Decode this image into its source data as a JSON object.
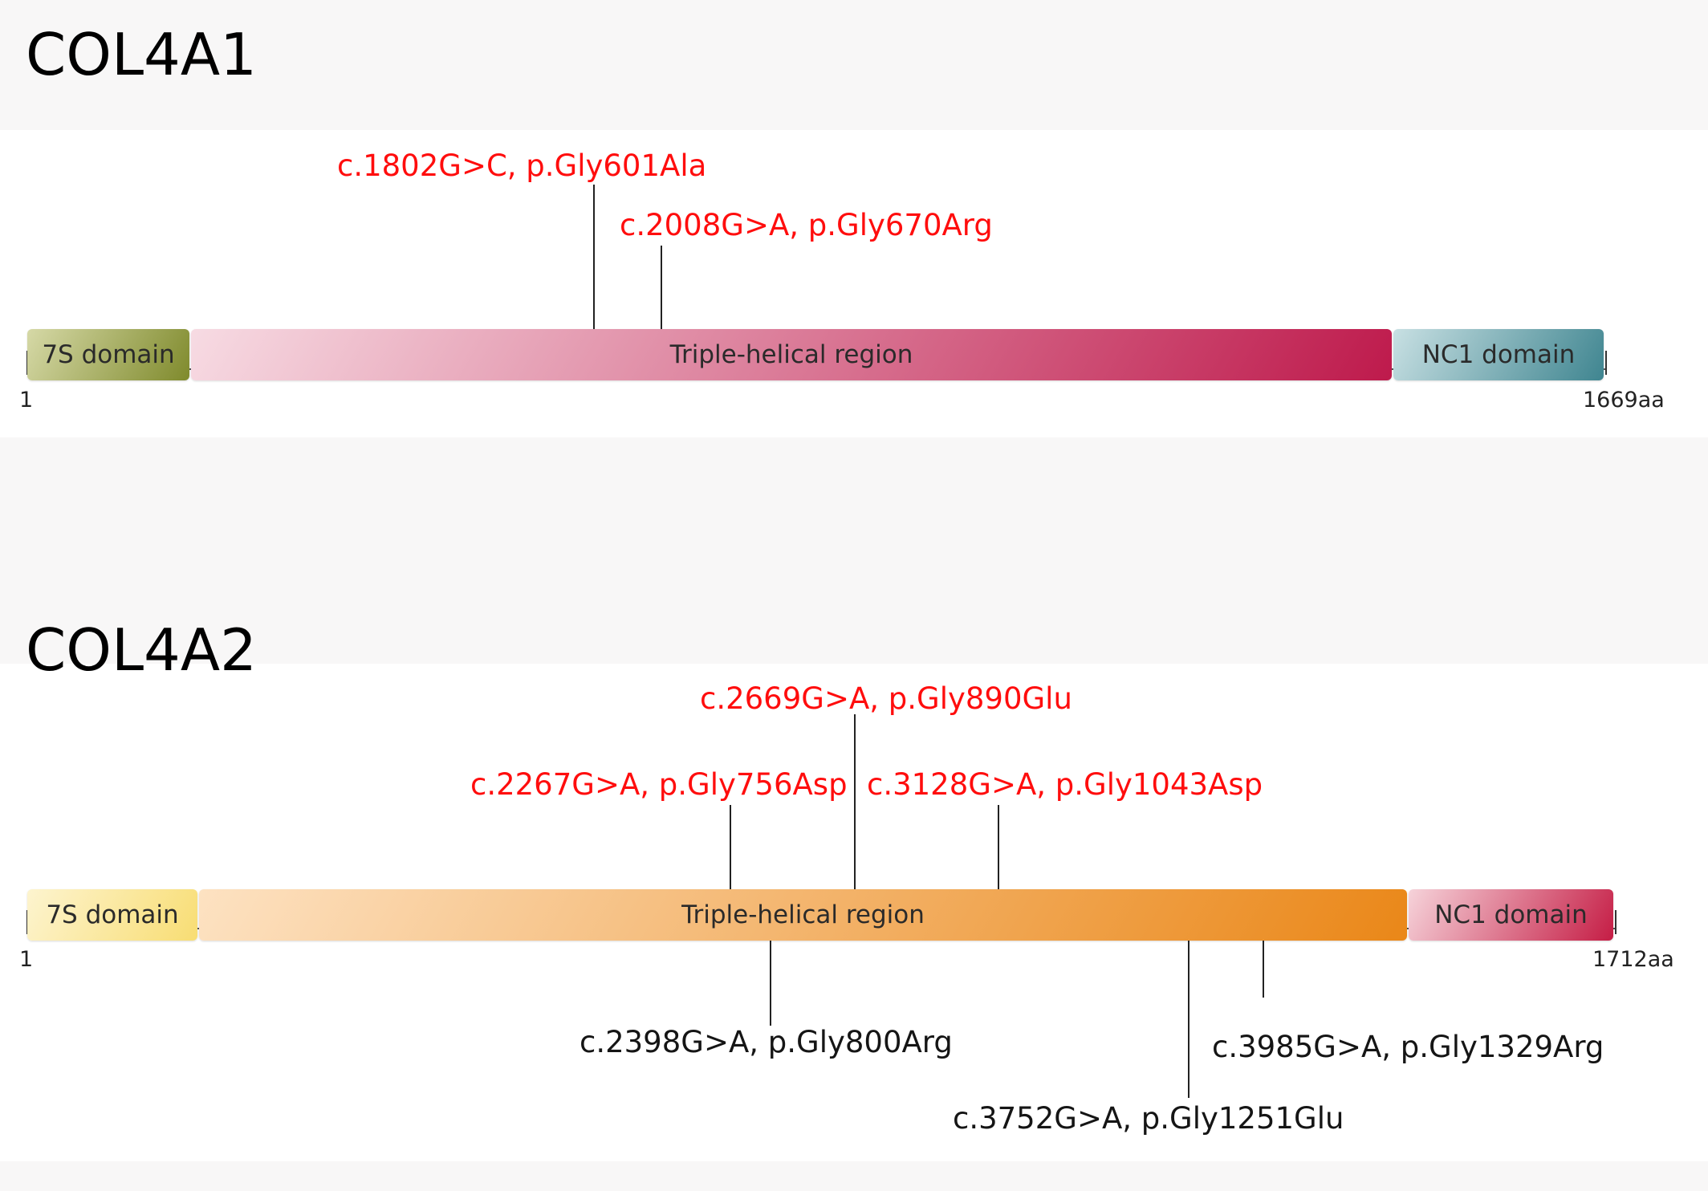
{
  "accent_colors": {
    "mutation_highlight": "#ff0d0d",
    "mutation_plain": "#151515"
  },
  "genes": [
    {
      "id": "col4a1",
      "title": "COL4A1",
      "start_label": "1",
      "end_label": "1669aa",
      "domains": [
        {
          "name": "7S domain",
          "colors": [
            "#d6d9a7",
            "#7f8a2c"
          ]
        },
        {
          "name": "Triple-helical region",
          "colors": [
            "#f7dbe3",
            "#be1a4c"
          ]
        },
        {
          "name": "NC1 domain",
          "colors": [
            "#c8e0e3",
            "#3f8590"
          ]
        }
      ],
      "mutations": [
        {
          "label": "c.1802G>C, p.Gly601Ala",
          "highlighted": true
        },
        {
          "label": "c.2008G>A, p.Gly670Arg",
          "highlighted": true
        }
      ]
    },
    {
      "id": "col4a2",
      "title": "COL4A2",
      "start_label": "1",
      "end_label": "1712aa",
      "domains": [
        {
          "name": "7S domain",
          "colors": [
            "#fdf4cf",
            "#f8dd73"
          ]
        },
        {
          "name": "Triple-helical region",
          "colors": [
            "#fde2c2",
            "#ea8718"
          ]
        },
        {
          "name": "NC1 domain",
          "colors": [
            "#f6d3da",
            "#c51d45"
          ]
        }
      ],
      "mutations": [
        {
          "label": "c.2669G>A, p.Gly890Glu",
          "highlighted": true
        },
        {
          "label": "c.2267G>A, p.Gly756Asp",
          "highlighted": true
        },
        {
          "label": "c.3128G>A, p.Gly1043Asp",
          "highlighted": true
        },
        {
          "label": "c.2398G>A, p.Gly800Arg",
          "highlighted": false
        },
        {
          "label": "c.3985G>A, p.Gly1329Arg",
          "highlighted": false
        },
        {
          "label": "c.3752G>A, p.Gly1251Glu",
          "highlighted": false
        }
      ]
    }
  ]
}
